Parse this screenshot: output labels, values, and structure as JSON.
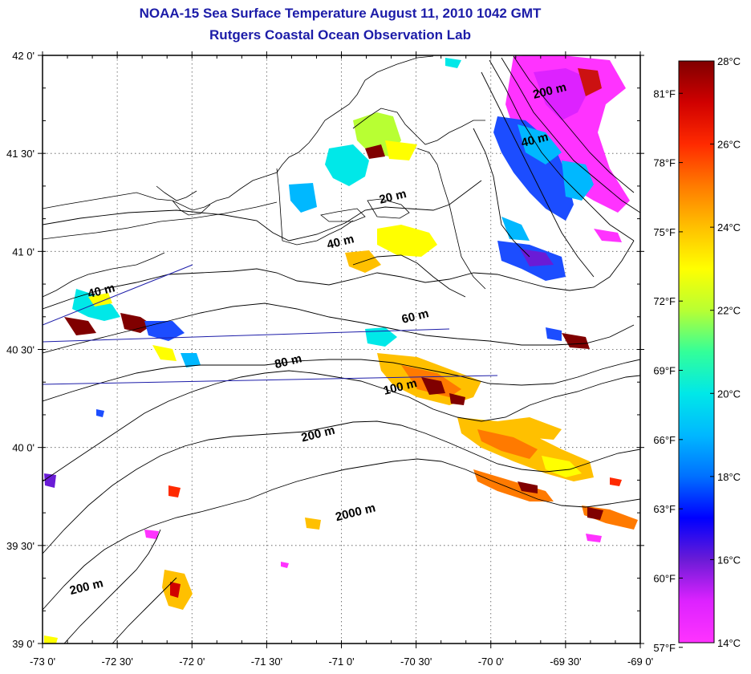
{
  "title": {
    "line1": "NOAA-15 Sea Surface Temperature August 11, 2010 1042 GMT",
    "line2": "Rutgers Coastal Ocean Observation Lab"
  },
  "map": {
    "lon_labels": [
      "-73 0'",
      "-72 30'",
      "-72 0'",
      "-71 30'",
      "-71 0'",
      "-70 30'",
      "-70 0'",
      "-69 30'",
      "-69 0'"
    ],
    "lat_labels": [
      "42 0'",
      "41 30'",
      "41 0'",
      "40 30'",
      "40 0'",
      "39 30'",
      "39 0'"
    ],
    "lon_range": [
      -73,
      -69
    ],
    "lat_range": [
      39,
      42
    ],
    "grid": true,
    "depth_labels": [
      {
        "text": "200 m",
        "lon": -69.6,
        "lat": 41.8
      },
      {
        "text": "40 m",
        "lon": -69.7,
        "lat": 41.55
      },
      {
        "text": "20 m",
        "lon": -70.65,
        "lat": 41.26
      },
      {
        "text": "40 m",
        "lon": -71.0,
        "lat": 41.03
      },
      {
        "text": "40 m",
        "lon": -72.6,
        "lat": 40.78
      },
      {
        "text": "60 m",
        "lon": -70.5,
        "lat": 40.65
      },
      {
        "text": "80 m",
        "lon": -71.35,
        "lat": 40.42
      },
      {
        "text": "100 m",
        "lon": -70.6,
        "lat": 40.29
      },
      {
        "text": "200 m",
        "lon": -71.15,
        "lat": 40.05
      },
      {
        "text": "2000 m",
        "lon": -70.9,
        "lat": 39.65
      },
      {
        "text": "200 m",
        "lon": -72.7,
        "lat": 39.27
      }
    ]
  },
  "colorbar": {
    "c_labels": [
      "28°C",
      "26°C",
      "24°C",
      "22°C",
      "20°C",
      "18°C",
      "16°C",
      "14°C"
    ],
    "c_values": [
      28,
      26,
      24,
      22,
      20,
      18,
      16,
      14
    ],
    "f_labels": [
      "81°F",
      "78°F",
      "75°F",
      "72°F",
      "69°F",
      "66°F",
      "63°F",
      "60°F",
      "57°F"
    ],
    "f_values": [
      81,
      78,
      75,
      72,
      69,
      66,
      63,
      60,
      57
    ],
    "range_c": [
      14,
      28
    ],
    "colors": [
      "#ff33ff",
      "#dd22ff",
      "#6a1bd6",
      "#0000ff",
      "#0070ff",
      "#00b8ff",
      "#00e8e8",
      "#33ff99",
      "#b8ff33",
      "#ffff00",
      "#ffc000",
      "#ff7a00",
      "#ff2a00",
      "#d00000",
      "#800000"
    ]
  }
}
